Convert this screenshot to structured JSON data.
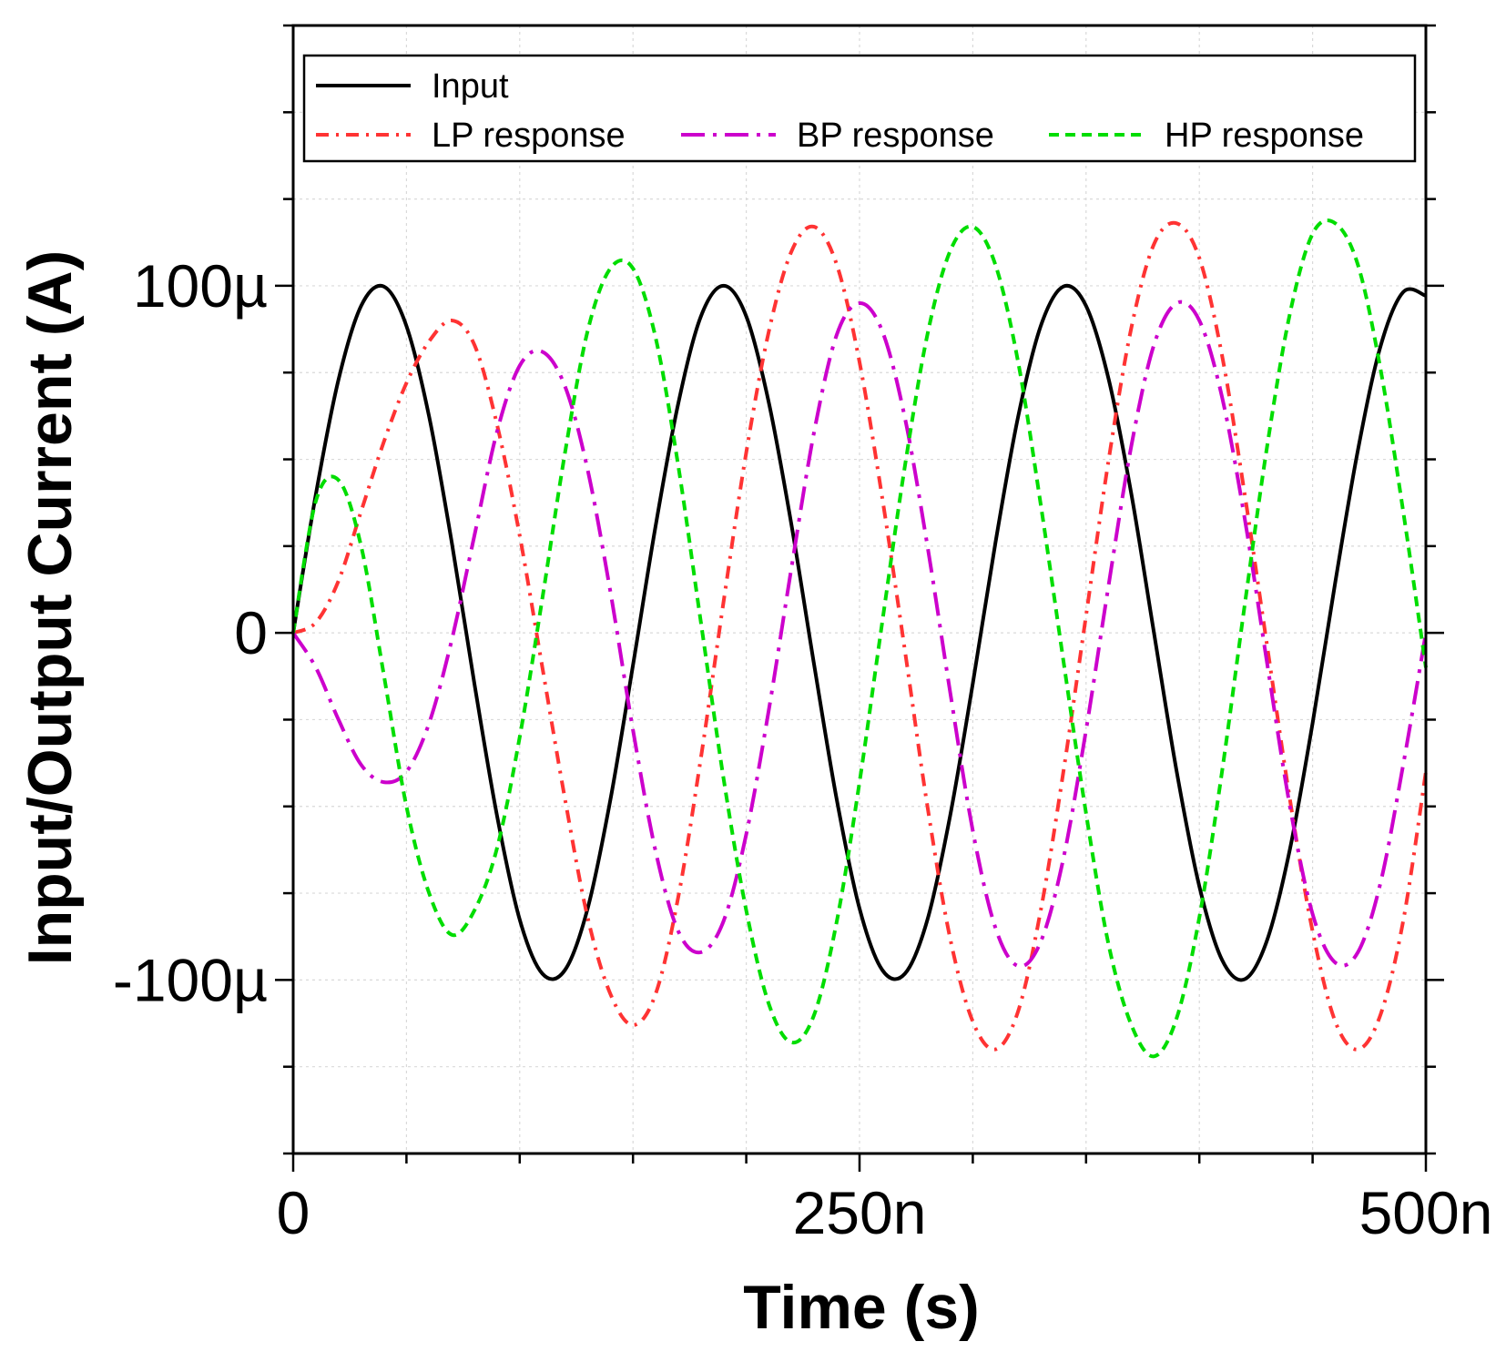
{
  "chart_data": {
    "type": "line",
    "title": "",
    "xlabel": "Time (s)",
    "ylabel": "Input/Output Current (A)",
    "xlim": [
      0,
      500
    ],
    "ylim": [
      -150,
      175
    ],
    "x_unit": "ns",
    "y_unit": "µA",
    "grid": true,
    "legend_position": "top",
    "x_ticks": [
      {
        "value": 0,
        "label": "0"
      },
      {
        "value": 250,
        "label": "250n"
      },
      {
        "value": 500,
        "label": "500n"
      }
    ],
    "y_ticks": [
      {
        "value": 100,
        "label": "100µ"
      },
      {
        "value": 0,
        "label": "0"
      },
      {
        "value": -100,
        "label": "-100µ"
      }
    ],
    "series": [
      {
        "name": "Input",
        "color": "#000000",
        "dash": "solid",
        "x": [
          0,
          10,
          20,
          30,
          40,
          50,
          60,
          70,
          80,
          90,
          100,
          110,
          120,
          130,
          140,
          150,
          160,
          170,
          180,
          190,
          200,
          210,
          220,
          230,
          240,
          250,
          260,
          270,
          280,
          290,
          300,
          310,
          320,
          330,
          340,
          350,
          360,
          370,
          380,
          390,
          400,
          410,
          420,
          430,
          440,
          450,
          460,
          470,
          480,
          490,
          500
        ],
        "y": [
          0,
          39.9,
          73.0,
          94.2,
          99.8,
          88.4,
          62.3,
          26.0,
          -14.6,
          -52.7,
          -82.6,
          -98.2,
          -97.1,
          -79.4,
          -48.2,
          -9.3,
          30.9,
          66.2,
          91.2,
          100.0,
          91.2,
          66.2,
          30.9,
          -9.3,
          -48.2,
          -79.4,
          -97.1,
          -98.2,
          -82.6,
          -52.7,
          -14.6,
          26.0,
          62.3,
          88.4,
          99.8,
          94.2,
          73.0,
          39.9,
          0,
          -39.9,
          -73.0,
          -94.2,
          -99.8,
          -88.4,
          -62.3,
          -26.0,
          14.6,
          52.7,
          82.6,
          98.2,
          97.1
        ]
      },
      {
        "name": "LP response",
        "color": "#ff3333",
        "dash": "dashdot",
        "x": [
          0,
          10,
          20,
          30,
          40,
          50,
          60,
          70,
          80,
          90,
          100,
          110,
          120,
          130,
          140,
          150,
          160,
          170,
          180,
          190,
          200,
          210,
          220,
          230,
          240,
          250,
          260,
          270,
          280,
          290,
          300,
          310,
          320,
          330,
          340,
          350,
          360,
          370,
          380,
          390,
          400,
          410,
          420,
          430,
          440,
          450,
          460,
          470,
          480,
          490,
          500
        ],
        "y": [
          0,
          3,
          15,
          35,
          55,
          72,
          84,
          90,
          83,
          60,
          28,
          -10,
          -48,
          -82,
          -104,
          -113,
          -104,
          -76,
          -36,
          9,
          52,
          87,
          110,
          117,
          106,
          78,
          39,
          -5,
          -50,
          -88,
          -112,
          -120,
          -109,
          -80,
          -40,
          5,
          50,
          88,
          112,
          118,
          108,
          80,
          40,
          -4,
          -48,
          -86,
          -112,
          -120,
          -110,
          -83,
          -40
        ]
      },
      {
        "name": "BP response",
        "color": "#cc00cc",
        "dash": "longdashdot",
        "x": [
          0,
          10,
          20,
          30,
          40,
          50,
          60,
          70,
          80,
          90,
          100,
          110,
          120,
          130,
          140,
          150,
          160,
          170,
          180,
          190,
          200,
          210,
          220,
          230,
          240,
          250,
          260,
          270,
          280,
          290,
          300,
          310,
          320,
          330,
          340,
          350,
          360,
          370,
          380,
          390,
          400,
          410,
          420,
          430,
          440,
          450,
          460,
          470,
          480,
          490,
          500
        ],
        "y": [
          0,
          -10,
          -25,
          -38,
          -43,
          -40,
          -26,
          -2,
          28,
          58,
          77,
          81,
          71,
          47,
          12,
          -28,
          -63,
          -86,
          -92,
          -83,
          -58,
          -22,
          19,
          58,
          86,
          95,
          87,
          62,
          25,
          -17,
          -57,
          -85,
          -96,
          -89,
          -65,
          -28,
          14,
          54,
          83,
          95,
          90,
          68,
          33,
          -9,
          -50,
          -81,
          -95,
          -92,
          -72,
          -38,
          0
        ]
      },
      {
        "name": "HP response",
        "color": "#00dd00",
        "dash": "dash",
        "x": [
          0,
          10,
          20,
          30,
          40,
          50,
          60,
          70,
          80,
          90,
          100,
          110,
          120,
          130,
          140,
          150,
          160,
          170,
          180,
          190,
          200,
          210,
          220,
          230,
          240,
          250,
          260,
          270,
          280,
          290,
          300,
          310,
          320,
          330,
          340,
          350,
          360,
          370,
          380,
          390,
          400,
          410,
          420,
          430,
          440,
          450,
          460,
          470,
          480,
          490,
          500
        ],
        "y": [
          0,
          38,
          44,
          25,
          -12,
          -50,
          -75,
          -87,
          -80,
          -62,
          -30,
          10,
          52,
          87,
          105,
          105,
          85,
          48,
          3,
          -42,
          -80,
          -107,
          -118,
          -110,
          -83,
          -43,
          3,
          48,
          86,
          110,
          117,
          106,
          78,
          37,
          -8,
          -52,
          -90,
          -113,
          -122,
          -111,
          -82,
          -40,
          8,
          54,
          92,
          115,
          118,
          106,
          76,
          35,
          -10
        ]
      }
    ]
  }
}
